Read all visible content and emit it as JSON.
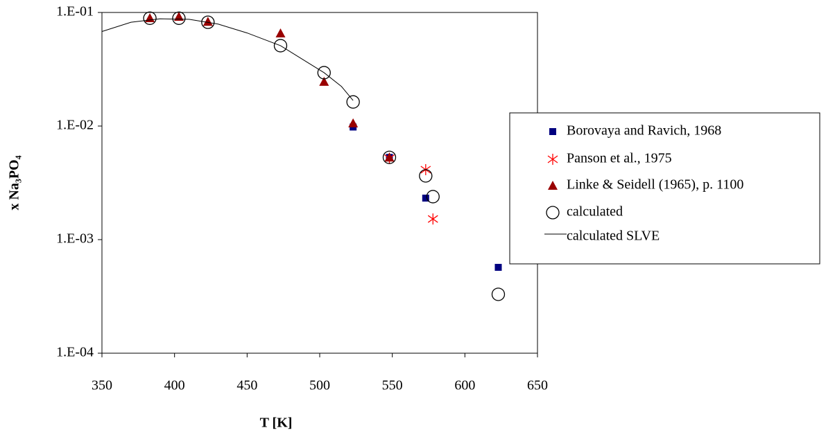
{
  "chart_data": {
    "type": "scatter",
    "xlabel": "T [K]",
    "ylabel": "x Na₃PO₄",
    "xlim": [
      350,
      650
    ],
    "xticks": [
      350,
      400,
      450,
      500,
      550,
      600,
      650
    ],
    "ylim": [
      0.0001,
      0.1
    ],
    "ylog": true,
    "yticks": [
      {
        "value": 0.0001,
        "label": "1.E-04"
      },
      {
        "value": 0.001,
        "label": "1.E-03"
      },
      {
        "value": 0.01,
        "label": "1.E-02"
      },
      {
        "value": 0.1,
        "label": "1.E-01"
      }
    ],
    "legend": "right",
    "series": [
      {
        "name": "Borovaya and Ravich, 1968",
        "marker": "square",
        "color": "#000080",
        "x": [
          523,
          548,
          573,
          623
        ],
        "values": [
          0.0098,
          0.0053,
          0.00232,
          0.00057
        ]
      },
      {
        "name": "Panson et al., 1975",
        "marker": "asterisk",
        "color": "#ff0000",
        "x": [
          548,
          573,
          578
        ],
        "values": [
          0.0052,
          0.00413,
          0.00152
        ]
      },
      {
        "name": "Linke & Seidell (1965), p. 1100",
        "marker": "triangle",
        "color": "#990000",
        "x": [
          383,
          403,
          423,
          473,
          503,
          523,
          548
        ],
        "values": [
          0.0894,
          0.092,
          0.083,
          0.0656,
          0.0246,
          0.0106,
          0.0053
        ]
      },
      {
        "name": "calculated",
        "marker": "circle",
        "color": "#000000",
        "x": [
          383,
          403,
          423,
          473,
          503,
          523,
          548,
          573,
          578,
          623
        ],
        "values": [
          0.089,
          0.089,
          0.082,
          0.051,
          0.0295,
          0.0163,
          0.0053,
          0.00364,
          0.00239,
          0.00033
        ]
      },
      {
        "name": "calculated SLVE",
        "marker": "line",
        "color": "#000000",
        "x": [
          350,
          370,
          390,
          410,
          430,
          450,
          473,
          490,
          503,
          515,
          523
        ],
        "values": [
          0.068,
          0.082,
          0.088,
          0.087,
          0.079,
          0.066,
          0.051,
          0.0374,
          0.0295,
          0.0223,
          0.0168
        ]
      }
    ]
  }
}
